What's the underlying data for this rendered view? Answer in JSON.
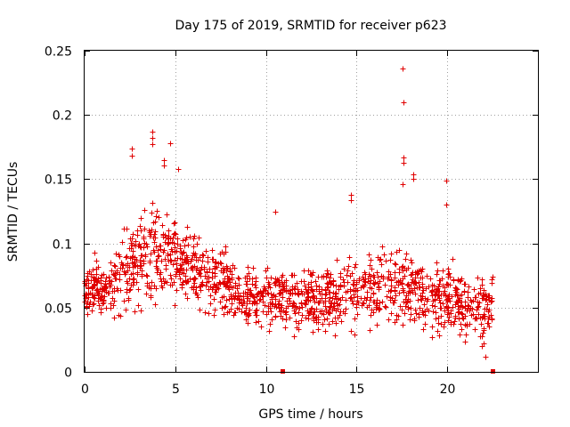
{
  "chart_data": {
    "type": "scatter",
    "title": "Day 175 of 2019, SRMTID for receiver p623",
    "xlabel": "GPS time / hours",
    "ylabel": "SRMTID / TECUs",
    "xlim": [
      0,
      25
    ],
    "ylim": [
      0,
      0.25
    ],
    "x_ticks": [
      "0",
      "5",
      "10",
      "15",
      "20"
    ],
    "x_tick_values": [
      0,
      5,
      10,
      15,
      20
    ],
    "y_ticks": [
      "0",
      "0.05",
      "0.1",
      "0.15",
      "0.2",
      "0.25"
    ],
    "y_tick_values": [
      0,
      0.05,
      0.1,
      0.15,
      0.2,
      0.25
    ],
    "grid": true,
    "marker": "plus",
    "series_color": "#e00000",
    "data_gap_markers_x": [
      10.9,
      22.5
    ],
    "envelope": {
      "x": [
        0.0,
        0.5,
        1.0,
        1.5,
        2.0,
        2.5,
        3.0,
        3.5,
        4.0,
        4.5,
        5.0,
        5.5,
        6.0,
        6.5,
        7.0,
        7.5,
        8.0,
        8.5,
        9.0,
        9.5,
        10.0,
        10.5,
        11.0,
        11.5,
        12.0,
        12.5,
        13.0,
        13.5,
        14.0,
        14.5,
        15.0,
        15.5,
        16.0,
        16.5,
        17.0,
        17.5,
        18.0,
        18.5,
        19.0,
        19.5,
        20.0,
        20.5,
        21.0,
        21.5,
        22.0,
        22.5
      ],
      "y_center": [
        0.062,
        0.068,
        0.062,
        0.066,
        0.075,
        0.085,
        0.088,
        0.09,
        0.092,
        0.092,
        0.09,
        0.085,
        0.078,
        0.072,
        0.07,
        0.068,
        0.066,
        0.062,
        0.058,
        0.058,
        0.06,
        0.058,
        0.055,
        0.055,
        0.057,
        0.058,
        0.058,
        0.058,
        0.06,
        0.062,
        0.062,
        0.062,
        0.064,
        0.066,
        0.068,
        0.072,
        0.07,
        0.062,
        0.055,
        0.058,
        0.06,
        0.056,
        0.052,
        0.05,
        0.048,
        0.055
      ],
      "y_spread": [
        0.018,
        0.02,
        0.02,
        0.02,
        0.025,
        0.03,
        0.032,
        0.034,
        0.034,
        0.032,
        0.03,
        0.026,
        0.024,
        0.022,
        0.022,
        0.022,
        0.022,
        0.02,
        0.02,
        0.02,
        0.022,
        0.02,
        0.02,
        0.02,
        0.022,
        0.022,
        0.022,
        0.022,
        0.022,
        0.024,
        0.024,
        0.024,
        0.024,
        0.026,
        0.028,
        0.03,
        0.03,
        0.024,
        0.02,
        0.022,
        0.024,
        0.022,
        0.02,
        0.02,
        0.018,
        0.018
      ]
    },
    "notable_points": [
      {
        "x": 2.6,
        "y": 0.174
      },
      {
        "x": 2.6,
        "y": 0.168
      },
      {
        "x": 3.75,
        "y": 0.187
      },
      {
        "x": 3.75,
        "y": 0.182
      },
      {
        "x": 3.75,
        "y": 0.177
      },
      {
        "x": 4.35,
        "y": 0.165
      },
      {
        "x": 4.35,
        "y": 0.161
      },
      {
        "x": 4.7,
        "y": 0.178
      },
      {
        "x": 5.15,
        "y": 0.158
      },
      {
        "x": 10.5,
        "y": 0.125
      },
      {
        "x": 14.7,
        "y": 0.138
      },
      {
        "x": 14.7,
        "y": 0.134
      },
      {
        "x": 17.55,
        "y": 0.236
      },
      {
        "x": 17.6,
        "y": 0.21
      },
      {
        "x": 17.6,
        "y": 0.167
      },
      {
        "x": 17.6,
        "y": 0.163
      },
      {
        "x": 17.55,
        "y": 0.146
      },
      {
        "x": 18.1,
        "y": 0.154
      },
      {
        "x": 18.1,
        "y": 0.15
      },
      {
        "x": 19.95,
        "y": 0.149
      },
      {
        "x": 19.95,
        "y": 0.13
      },
      {
        "x": 22.1,
        "y": 0.012
      },
      {
        "x": 21.9,
        "y": 0.02
      },
      {
        "x": 22.0,
        "y": 0.022
      }
    ]
  }
}
